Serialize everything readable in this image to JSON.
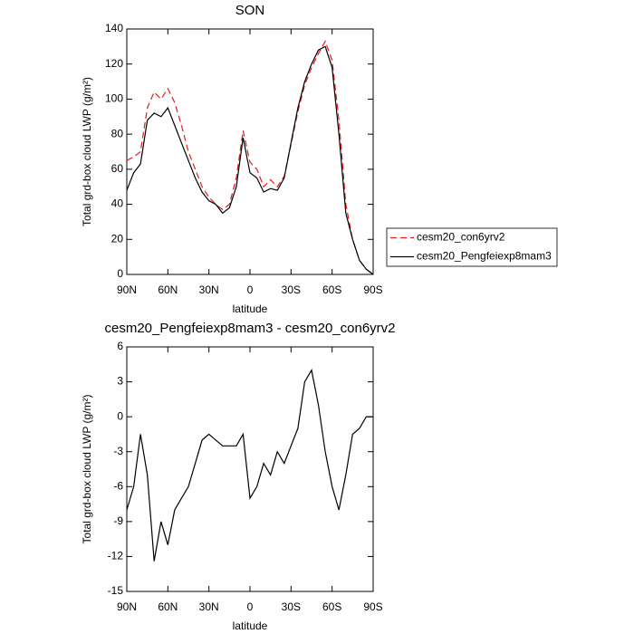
{
  "chart_data": [
    {
      "type": "line",
      "title": "SON",
      "xlabel": "latitude",
      "ylabel": "Total grd-box cloud LWP (g/m²)",
      "x": [
        90,
        85,
        80,
        75,
        70,
        65,
        60,
        55,
        50,
        45,
        40,
        35,
        30,
        25,
        20,
        15,
        10,
        5,
        0,
        -5,
        -10,
        -15,
        -20,
        -25,
        -30,
        -35,
        -40,
        -45,
        -50,
        -55,
        -60,
        -65,
        -70,
        -75,
        -80,
        -85,
        -90
      ],
      "series": [
        {
          "name": "cesm20_con6yrv2",
          "color": "#e41a1c",
          "dash": true,
          "values": [
            65,
            67,
            70,
            95,
            104,
            100,
            106,
            98,
            85,
            70,
            60,
            50,
            44,
            40,
            37,
            40,
            55,
            82,
            64,
            60,
            50,
            54,
            50,
            56,
            74,
            93,
            108,
            118,
            126,
            133,
            122,
            88,
            40,
            20,
            8,
            3,
            0
          ]
        },
        {
          "name": "cesm20_Pengfeiexp8mam3",
          "color": "#000000",
          "dash": false,
          "values": [
            48,
            58,
            63,
            88,
            92,
            90,
            95,
            85,
            75,
            65,
            55,
            47,
            42,
            40,
            35,
            38,
            50,
            78,
            58,
            55,
            47,
            49,
            48,
            55,
            75,
            95,
            110,
            120,
            128,
            130,
            118,
            80,
            35,
            20,
            8,
            3,
            0
          ]
        }
      ],
      "xlim": [
        90,
        -90
      ],
      "xticks": [
        {
          "value": 90,
          "label": "90N"
        },
        {
          "value": 60,
          "label": "60N"
        },
        {
          "value": 30,
          "label": "30N"
        },
        0,
        {
          "value": -30,
          "label": "30S"
        },
        {
          "value": -60,
          "label": "60S"
        },
        {
          "value": -90,
          "label": "90S"
        }
      ],
      "ylim": [
        0,
        140
      ],
      "yticks": [
        0,
        20,
        40,
        60,
        80,
        100,
        120,
        140
      ],
      "legend": "right"
    },
    {
      "type": "line",
      "title": "cesm20_Pengfeiexp8mam3 - cesm20_con6yrv2",
      "xlabel": "latitude",
      "ylabel": "Total grd-box cloud LWP (g/m²)",
      "x": [
        90,
        85,
        80,
        75,
        70,
        65,
        60,
        55,
        50,
        45,
        40,
        35,
        30,
        25,
        20,
        15,
        10,
        5,
        0,
        -5,
        -10,
        -15,
        -20,
        -25,
        -30,
        -35,
        -40,
        -45,
        -50,
        -55,
        -60,
        -65,
        -70,
        -75,
        -80,
        -85,
        -90
      ],
      "color": "#000000",
      "values": [
        -8,
        -6,
        -1.5,
        -5,
        -12.4,
        -9,
        -11,
        -8,
        -7,
        -6,
        -4,
        -2,
        -1.5,
        -2,
        -2.5,
        -2.5,
        -2.5,
        -1.5,
        -7,
        -6,
        -4,
        -5,
        -3,
        -4,
        -2.5,
        -1,
        3,
        4,
        1,
        -3,
        -6,
        -8,
        -5,
        -1.5,
        -1,
        0,
        0
      ],
      "xlim": [
        90,
        -90
      ],
      "xticks": [
        {
          "value": 90,
          "label": "90N"
        },
        {
          "value": 60,
          "label": "60N"
        },
        {
          "value": 30,
          "label": "30N"
        },
        0,
        {
          "value": -30,
          "label": "30S"
        },
        {
          "value": -60,
          "label": "60S"
        },
        {
          "value": -90,
          "label": "90S"
        }
      ],
      "ylim": [
        -15,
        6
      ],
      "yticks": [
        6,
        3,
        0,
        -3,
        -6,
        -9,
        -12,
        -15
      ]
    }
  ]
}
